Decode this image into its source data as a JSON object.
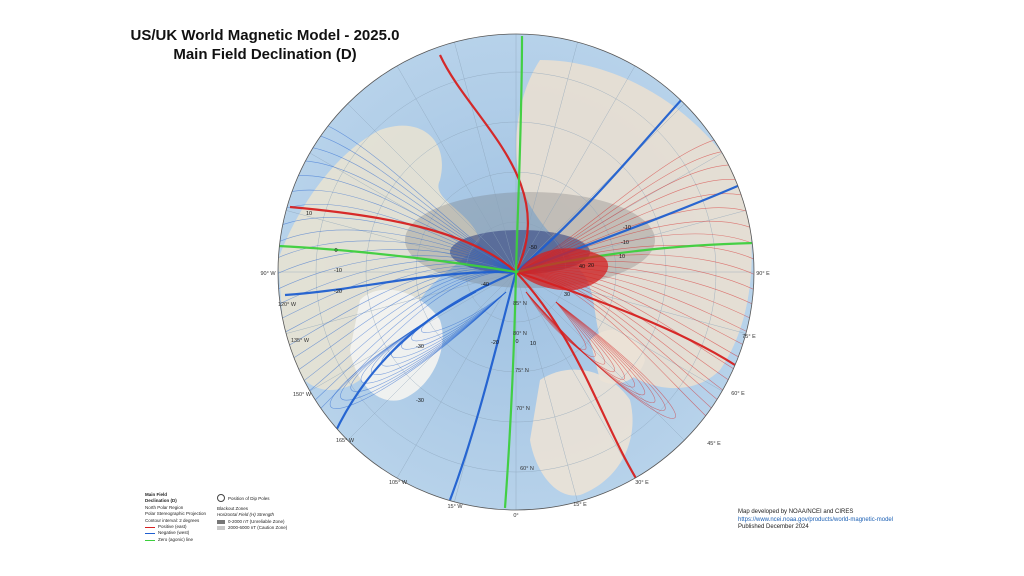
{
  "title": {
    "line1": "US/UK World Magnetic Model - 2025.0",
    "line2": "Main Field Declination (D)"
  },
  "legend": {
    "heading1": "Main Field",
    "heading2": "Declination (D)",
    "region": "North Polar Region",
    "projection": "Polar Stereographic Projection",
    "interval": "Contour interval: 2 degrees",
    "positive": "Positive (east)",
    "negative": "Negative (west)",
    "zero": "Zero (agonic) line",
    "dip_poles": "Position of Dip Poles",
    "blackout_title": "Blackout Zones",
    "blackout_sub": "Horizontal Field (H) Strength",
    "zone1": "0-2000 nT (Unreliable Zone)",
    "zone2": "2000-6000 nT (Caution Zone)"
  },
  "credits": {
    "line1": "Map developed by NOAA/NCEI and CIRES",
    "link": "https://www.ncei.noaa.gov/products/world-magnetic-model",
    "line3": "Published December 2024"
  },
  "map": {
    "lon_labels": [
      "90° W",
      "90° E",
      "0°",
      "75° E",
      "60° E",
      "45° E",
      "30° E",
      "15° E",
      "165° W",
      "150° W",
      "135° W",
      "120° W",
      "105° W",
      "15° W"
    ],
    "lat_labels": [
      "60° N",
      "70° N",
      "75° N",
      "80° N",
      "85° N"
    ],
    "contour_labels": [
      "10",
      "0",
      "-10",
      "-20",
      "-30",
      "-40",
      "-50",
      "10",
      "20",
      "30",
      "40",
      "-10",
      "0",
      "10",
      "-30",
      "-20",
      "-10"
    ],
    "colors": {
      "positive": "#d62020",
      "negative": "#1f5fd0",
      "zero": "#3ccf3c",
      "ocean": "#a9c9e6",
      "land": "#e8e4d8"
    }
  }
}
